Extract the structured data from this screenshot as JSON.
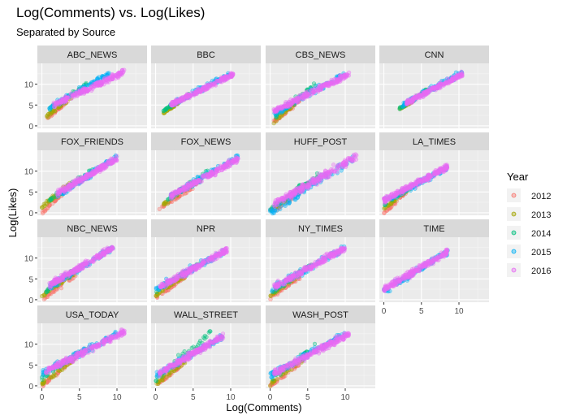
{
  "chart_data": {
    "type": "scatter",
    "title": "Log(Comments) vs. Log(Likes)",
    "subtitle": "Separated by Source",
    "xlabel": "Log(Comments)",
    "ylabel": "Log(Likes)",
    "xlim": [
      -0.6,
      14
    ],
    "ylim": [
      -0.6,
      15
    ],
    "x_ticks": [
      0,
      5,
      10
    ],
    "y_ticks": [
      0,
      5,
      10
    ],
    "grid": true,
    "facet_layout": "4 columns x 4 rows, free across facets with shared axes",
    "legend": {
      "title": "Year",
      "position": "right",
      "entries": [
        {
          "label": "2012",
          "color": "#F8766D"
        },
        {
          "label": "2013",
          "color": "#A3A500"
        },
        {
          "label": "2014",
          "color": "#00BF7D"
        },
        {
          "label": "2015",
          "color": "#00B0F6"
        },
        {
          "label": "2016",
          "color": "#E76BF3"
        }
      ]
    },
    "facets": [
      {
        "name": "ABC_NEWS",
        "points": [
          {
            "year": "2012",
            "x": [
              0.5,
              3.5
            ],
            "y": [
              1.5,
              6.0
            ]
          },
          {
            "year": "2013",
            "x": [
              0.5,
              4.0
            ],
            "y": [
              2.0,
              7.0
            ]
          },
          {
            "year": "2014",
            "x": [
              1.0,
              6.0
            ],
            "y": [
              4.0,
              10.0
            ]
          },
          {
            "year": "2015",
            "x": [
              1.0,
              9.0
            ],
            "y": [
              4.5,
              12.5
            ]
          },
          {
            "year": "2016",
            "x": [
              1.5,
              11.0
            ],
            "y": [
              5.0,
              13.0
            ]
          }
        ]
      },
      {
        "name": "BBC",
        "points": [
          {
            "year": "2013",
            "x": [
              1.0,
              3.0
            ],
            "y": [
              3.0,
              5.5
            ]
          },
          {
            "year": "2014",
            "x": [
              1.0,
              4.5
            ],
            "y": [
              3.5,
              7.5
            ]
          },
          {
            "year": "2015",
            "x": [
              2.0,
              10.0
            ],
            "y": [
              5.0,
              12.5
            ]
          },
          {
            "year": "2016",
            "x": [
              2.0,
              10.5
            ],
            "y": [
              5.0,
              12.5
            ]
          }
        ]
      },
      {
        "name": "CBS_NEWS",
        "points": [
          {
            "year": "2012",
            "x": [
              0.5,
              4.0
            ],
            "y": [
              1.0,
              6.0
            ]
          },
          {
            "year": "2013",
            "x": [
              0.5,
              4.0
            ],
            "y": [
              1.0,
              6.5
            ]
          },
          {
            "year": "2014",
            "x": [
              0.5,
              6.0
            ],
            "y": [
              2.0,
              10.0
            ]
          },
          {
            "year": "2015",
            "x": [
              0.5,
              10.0
            ],
            "y": [
              3.0,
              12.5
            ]
          },
          {
            "year": "2016",
            "x": [
              0.5,
              10.5
            ],
            "y": [
              3.5,
              12.5
            ]
          }
        ]
      },
      {
        "name": "CNN",
        "points": [
          {
            "year": "2013",
            "x": [
              2.0,
              4.0
            ],
            "y": [
              4.0,
              6.0
            ]
          },
          {
            "year": "2014",
            "x": [
              2.0,
              6.0
            ],
            "y": [
              4.0,
              9.0
            ]
          },
          {
            "year": "2015",
            "x": [
              2.5,
              10.5
            ],
            "y": [
              5.0,
              13.0
            ]
          },
          {
            "year": "2016",
            "x": [
              3.0,
              10.5
            ],
            "y": [
              5.5,
              12.5
            ]
          }
        ]
      },
      {
        "name": "FOX_FRIENDS",
        "points": [
          {
            "year": "2012",
            "x": [
              0.0,
              3.0
            ],
            "y": [
              0.0,
              5.0
            ]
          },
          {
            "year": "2013",
            "x": [
              0.0,
              4.0
            ],
            "y": [
              1.5,
              7.5
            ]
          },
          {
            "year": "2014",
            "x": [
              1.0,
              7.0
            ],
            "y": [
              3.0,
              10.5
            ]
          },
          {
            "year": "2015",
            "x": [
              2.0,
              10.0
            ],
            "y": [
              4.0,
              13.5
            ]
          },
          {
            "year": "2016",
            "x": [
              2.0,
              10.0
            ],
            "y": [
              4.5,
              13.0
            ]
          }
        ]
      },
      {
        "name": "FOX_NEWS",
        "points": [
          {
            "year": "2012",
            "x": [
              0.5,
              5.0
            ],
            "y": [
              1.0,
              6.0
            ]
          },
          {
            "year": "2013",
            "x": [
              1.0,
              6.0
            ],
            "y": [
              2.0,
              8.0
            ]
          },
          {
            "year": "2014",
            "x": [
              1.5,
              7.0
            ],
            "y": [
              3.0,
              10.0
            ]
          },
          {
            "year": "2015",
            "x": [
              2.0,
              11.0
            ],
            "y": [
              4.0,
              13.5
            ]
          },
          {
            "year": "2016",
            "x": [
              2.0,
              11.0
            ],
            "y": [
              4.0,
              13.0
            ]
          }
        ]
      },
      {
        "name": "HUFF_POST",
        "points": [
          {
            "year": "2012",
            "x": [
              0.0,
              5.0
            ],
            "y": [
              0.0,
              6.0
            ]
          },
          {
            "year": "2013",
            "x": [
              0.0,
              5.0
            ],
            "y": [
              0.5,
              7.0
            ]
          },
          {
            "year": "2014",
            "x": [
              0.0,
              7.0
            ],
            "y": [
              1.0,
              10.0
            ]
          },
          {
            "year": "2015",
            "x": [
              0.0,
              11.0
            ],
            "y": [
              0.0,
              13.0
            ]
          },
          {
            "year": "2016",
            "x": [
              0.5,
              11.5
            ],
            "y": [
              2.0,
              13.5
            ]
          }
        ]
      },
      {
        "name": "LA_TIMES",
        "points": [
          {
            "year": "2012",
            "x": [
              0.0,
              3.0
            ],
            "y": [
              0.0,
              5.0
            ]
          },
          {
            "year": "2013",
            "x": [
              0.0,
              3.5
            ],
            "y": [
              1.0,
              6.0
            ]
          },
          {
            "year": "2014",
            "x": [
              0.0,
              5.0
            ],
            "y": [
              2.0,
              8.0
            ]
          },
          {
            "year": "2015",
            "x": [
              0.0,
              8.5
            ],
            "y": [
              2.5,
              11.0
            ]
          },
          {
            "year": "2016",
            "x": [
              0.0,
              8.5
            ],
            "y": [
              3.0,
              11.0
            ]
          }
        ]
      },
      {
        "name": "NBC_NEWS",
        "points": [
          {
            "year": "2012",
            "x": [
              0.0,
              4.5
            ],
            "y": [
              0.0,
              6.0
            ]
          },
          {
            "year": "2013",
            "x": [
              0.0,
              4.5
            ],
            "y": [
              1.0,
              6.5
            ]
          },
          {
            "year": "2014",
            "x": [
              0.5,
              6.0
            ],
            "y": [
              2.0,
              9.0
            ]
          },
          {
            "year": "2015",
            "x": [
              1.0,
              9.5
            ],
            "y": [
              3.0,
              12.5
            ]
          },
          {
            "year": "2016",
            "x": [
              1.0,
              9.5
            ],
            "y": [
              3.5,
              12.5
            ]
          }
        ]
      },
      {
        "name": "NPR",
        "points": [
          {
            "year": "2012",
            "x": [
              0.0,
              4.0
            ],
            "y": [
              0.5,
              5.5
            ]
          },
          {
            "year": "2013",
            "x": [
              0.0,
              4.5
            ],
            "y": [
              1.0,
              6.5
            ]
          },
          {
            "year": "2014",
            "x": [
              0.0,
              6.0
            ],
            "y": [
              2.0,
              9.0
            ]
          },
          {
            "year": "2015",
            "x": [
              0.0,
              9.5
            ],
            "y": [
              2.5,
              12.0
            ]
          },
          {
            "year": "2016",
            "x": [
              0.5,
              9.5
            ],
            "y": [
              3.0,
              12.0
            ]
          }
        ]
      },
      {
        "name": "NY_TIMES",
        "points": [
          {
            "year": "2012",
            "x": [
              0.0,
              4.0
            ],
            "y": [
              0.5,
              5.5
            ]
          },
          {
            "year": "2013",
            "x": [
              0.0,
              4.0
            ],
            "y": [
              1.0,
              6.0
            ]
          },
          {
            "year": "2014",
            "x": [
              0.0,
              6.0
            ],
            "y": [
              1.5,
              9.0
            ]
          },
          {
            "year": "2015",
            "x": [
              0.0,
              10.0
            ],
            "y": [
              2.5,
              12.5
            ]
          },
          {
            "year": "2016",
            "x": [
              0.5,
              10.0
            ],
            "y": [
              3.0,
              12.5
            ]
          }
        ]
      },
      {
        "name": "TIME",
        "points": [
          {
            "year": "2015",
            "x": [
              0.0,
              8.5
            ],
            "y": [
              2.0,
              11.5
            ]
          },
          {
            "year": "2016",
            "x": [
              0.0,
              8.5
            ],
            "y": [
              2.5,
              11.5
            ]
          }
        ]
      },
      {
        "name": "USA_TODAY",
        "points": [
          {
            "year": "2012",
            "x": [
              0.0,
              4.0
            ],
            "y": [
              0.0,
              6.0
            ]
          },
          {
            "year": "2013",
            "x": [
              0.0,
              4.5
            ],
            "y": [
              0.5,
              6.5
            ]
          },
          {
            "year": "2014",
            "x": [
              0.0,
              6.0
            ],
            "y": [
              2.0,
              9.0
            ]
          },
          {
            "year": "2015",
            "x": [
              0.0,
              10.0
            ],
            "y": [
              3.0,
              12.5
            ]
          },
          {
            "year": "2016",
            "x": [
              0.5,
              11.0
            ],
            "y": [
              3.5,
              13.0
            ]
          }
        ]
      },
      {
        "name": "WALL_STREET",
        "points": [
          {
            "year": "2012",
            "x": [
              0.0,
              3.5
            ],
            "y": [
              0.0,
              5.0
            ]
          },
          {
            "year": "2013",
            "x": [
              0.0,
              4.0
            ],
            "y": [
              0.5,
              6.0
            ]
          },
          {
            "year": "2014",
            "x": [
              0.0,
              7.5
            ],
            "y": [
              1.5,
              13.0
            ]
          },
          {
            "year": "2015",
            "x": [
              0.0,
              9.0
            ],
            "y": [
              2.5,
              12.0
            ]
          },
          {
            "year": "2016",
            "x": [
              0.5,
              9.0
            ],
            "y": [
              3.0,
              12.0
            ]
          }
        ]
      },
      {
        "name": "WASH_POST",
        "points": [
          {
            "year": "2012",
            "x": [
              0.0,
              4.0
            ],
            "y": [
              0.0,
              5.5
            ]
          },
          {
            "year": "2013",
            "x": [
              0.0,
              4.5
            ],
            "y": [
              0.5,
              6.5
            ]
          },
          {
            "year": "2014",
            "x": [
              0.0,
              6.0
            ],
            "y": [
              1.5,
              9.5
            ]
          },
          {
            "year": "2015",
            "x": [
              0.0,
              10.0
            ],
            "y": [
              2.5,
              12.5
            ]
          },
          {
            "year": "2016",
            "x": [
              0.5,
              10.5
            ],
            "y": [
              3.0,
              12.5
            ]
          }
        ]
      }
    ]
  }
}
